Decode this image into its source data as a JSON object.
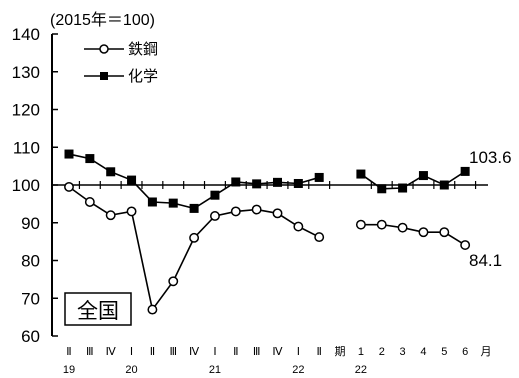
{
  "chart_data": {
    "type": "line",
    "unit_label": "(2015年＝100)",
    "region_label": "全国",
    "y_ticks": [
      60,
      70,
      80,
      90,
      100,
      110,
      120,
      130,
      140
    ],
    "ylim": [
      60,
      140
    ],
    "baseline": 100,
    "grid": false,
    "legend_position": "top-left",
    "categories": [
      "Ⅱ",
      "Ⅲ",
      "Ⅳ",
      "Ⅰ",
      "Ⅱ",
      "Ⅲ",
      "Ⅳ",
      "Ⅰ",
      "Ⅱ",
      "Ⅲ",
      "Ⅳ",
      "Ⅰ",
      "Ⅱ",
      "期",
      "1",
      "2",
      "3",
      "4",
      "5",
      "6",
      "月"
    ],
    "year_labels": [
      {
        "label": "19",
        "at": 0
      },
      {
        "label": "20",
        "at": 3
      },
      {
        "label": "21",
        "at": 7
      },
      {
        "label": "22",
        "at": 11
      },
      {
        "label": "22",
        "at": 14
      }
    ],
    "series": [
      {
        "name": "鉄鋼",
        "marker": "open-circle",
        "segments": [
          {
            "x": [
              0,
              1,
              2,
              3,
              4,
              5,
              6,
              7,
              8,
              9,
              10,
              11,
              12
            ],
            "y": [
              99.5,
              95.5,
              92.0,
              93.0,
              67.0,
              74.5,
              86.0,
              91.8,
              93.0,
              93.5,
              92.5,
              89.0,
              86.2
            ]
          },
          {
            "x": [
              14,
              15,
              16,
              17,
              18,
              19
            ],
            "y": [
              89.5,
              89.5,
              88.7,
              87.5,
              87.5,
              84.1
            ]
          }
        ],
        "end_label": "84.1"
      },
      {
        "name": "化学",
        "marker": "filled-square",
        "segments": [
          {
            "x": [
              0,
              1,
              2,
              3,
              4,
              5,
              6,
              7,
              8,
              9,
              10,
              11,
              12
            ],
            "y": [
              108.2,
              107.0,
              103.5,
              101.3,
              95.5,
              95.2,
              93.8,
              97.3,
              100.8,
              100.3,
              100.7,
              100.4,
              102.0
            ]
          },
          {
            "x": [
              14,
              15,
              16,
              17,
              18,
              19
            ],
            "y": [
              102.9,
              99.0,
              99.2,
              102.5,
              100.0,
              103.6
            ]
          }
        ],
        "end_label": "103.6"
      }
    ]
  }
}
